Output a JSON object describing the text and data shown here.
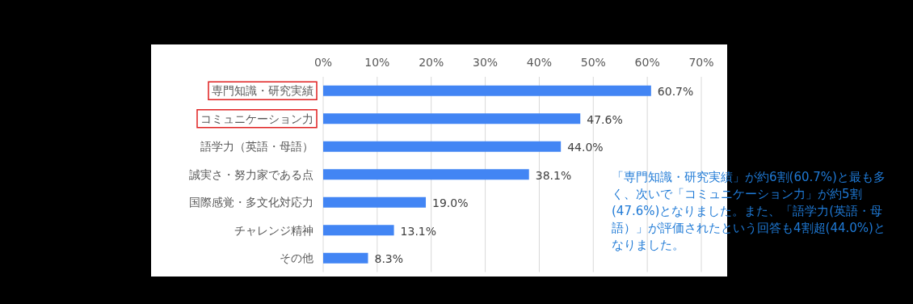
{
  "chart_data": {
    "type": "bar",
    "orientation": "horizontal",
    "categories": [
      "専門知識・研究実績",
      "コミュニケーション力",
      "語学力（英語・母語）",
      "誠実さ・努力家である点",
      "国際感覚・多文化対応力",
      "チャレンジ精神",
      "その他"
    ],
    "values": [
      60.7,
      47.6,
      44.0,
      38.1,
      19.0,
      13.1,
      8.3
    ],
    "value_labels": [
      "60.7%",
      "47.6%",
      "44.0%",
      "38.1%",
      "19.0%",
      "13.1%",
      "8.3%"
    ],
    "color": "#4285f4",
    "xlim": [
      0,
      70
    ],
    "xticks": [
      {
        "value": 0,
        "label": "0%"
      },
      {
        "value": 10,
        "label": "10%"
      },
      {
        "value": 20,
        "label": "20%"
      },
      {
        "value": 30,
        "label": "30%"
      },
      {
        "value": 40,
        "label": "40%"
      },
      {
        "value": 50,
        "label": "50%"
      },
      {
        "value": 60,
        "label": "60%"
      },
      {
        "value": 70,
        "label": "70%"
      }
    ],
    "grid": "x",
    "annotations": [
      "「専門知識・研究実績」が約6割(60.7%)と最も多く、次いで「コミュニケーション力」が約5割(47.6%)となりました。また、「語学力(英語・母語）」が評価されたという回答も4割超(44.0%)となりました。"
    ]
  }
}
